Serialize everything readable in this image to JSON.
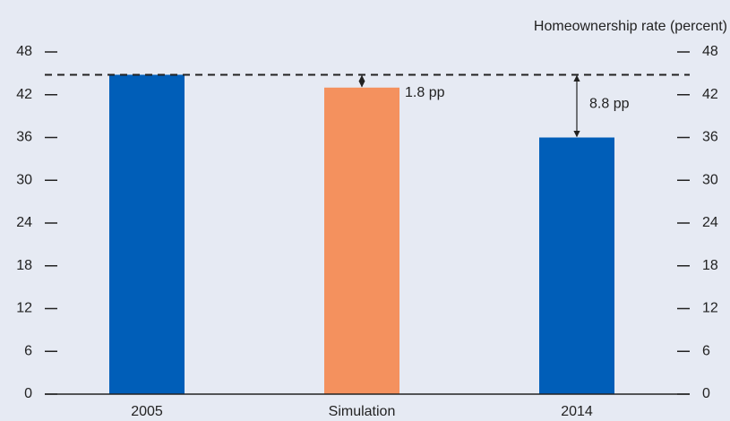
{
  "chart_data": {
    "type": "bar",
    "y_axis_label": "Homeownership rate (percent)",
    "categories": [
      "2005",
      "Simulation",
      "2014"
    ],
    "values": [
      44.8,
      43.0,
      36.0
    ],
    "colors": [
      "#005eb8",
      "#f4915e",
      "#005eb8"
    ],
    "ylim": [
      0,
      48
    ],
    "yticks": [
      0,
      6,
      12,
      18,
      24,
      30,
      36,
      42,
      48
    ],
    "reference_line": 44.8,
    "annotations": [
      {
        "text": "1.8 pp",
        "category": 1
      },
      {
        "text": "8.8 pp",
        "category": 2
      }
    ]
  }
}
